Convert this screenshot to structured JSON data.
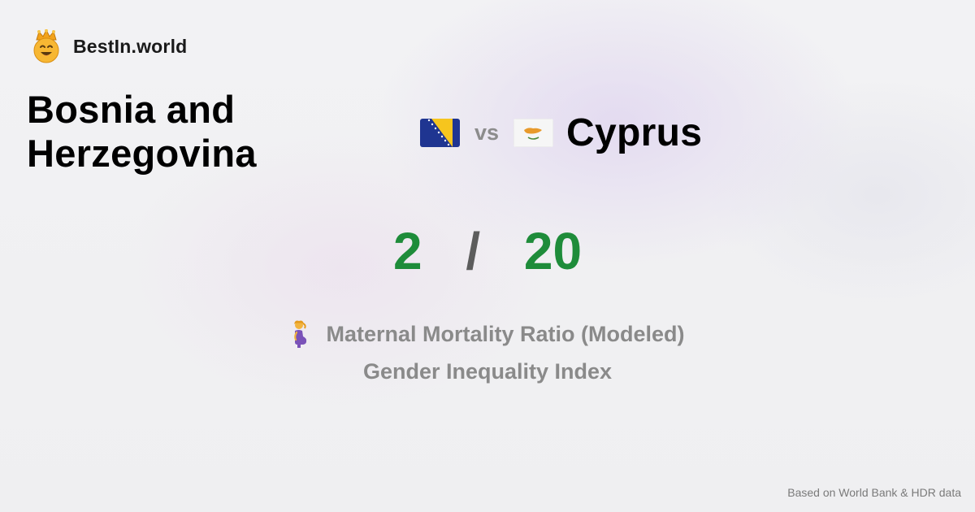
{
  "site": {
    "name": "BestIn.world",
    "logo": "crowned-smiley-icon"
  },
  "comparison": {
    "left_country": "Bosnia and Herzegovina",
    "left_flag": "bosnia-flag-icon",
    "vs_label": "vs",
    "right_country": "Cyprus",
    "right_flag": "cyprus-flag-icon"
  },
  "scores": {
    "left": "2",
    "separator": "/",
    "right": "20"
  },
  "metric": {
    "icon": "pregnant-woman-icon",
    "name": "Maternal Mortality Ratio (Modeled)",
    "category": "Gender Inequality Index"
  },
  "footer": {
    "source": "Based on World Bank & HDR data"
  },
  "colors": {
    "score": "#1e8c3a",
    "muted": "#8a8a8a",
    "background": "#f0f0f2"
  }
}
